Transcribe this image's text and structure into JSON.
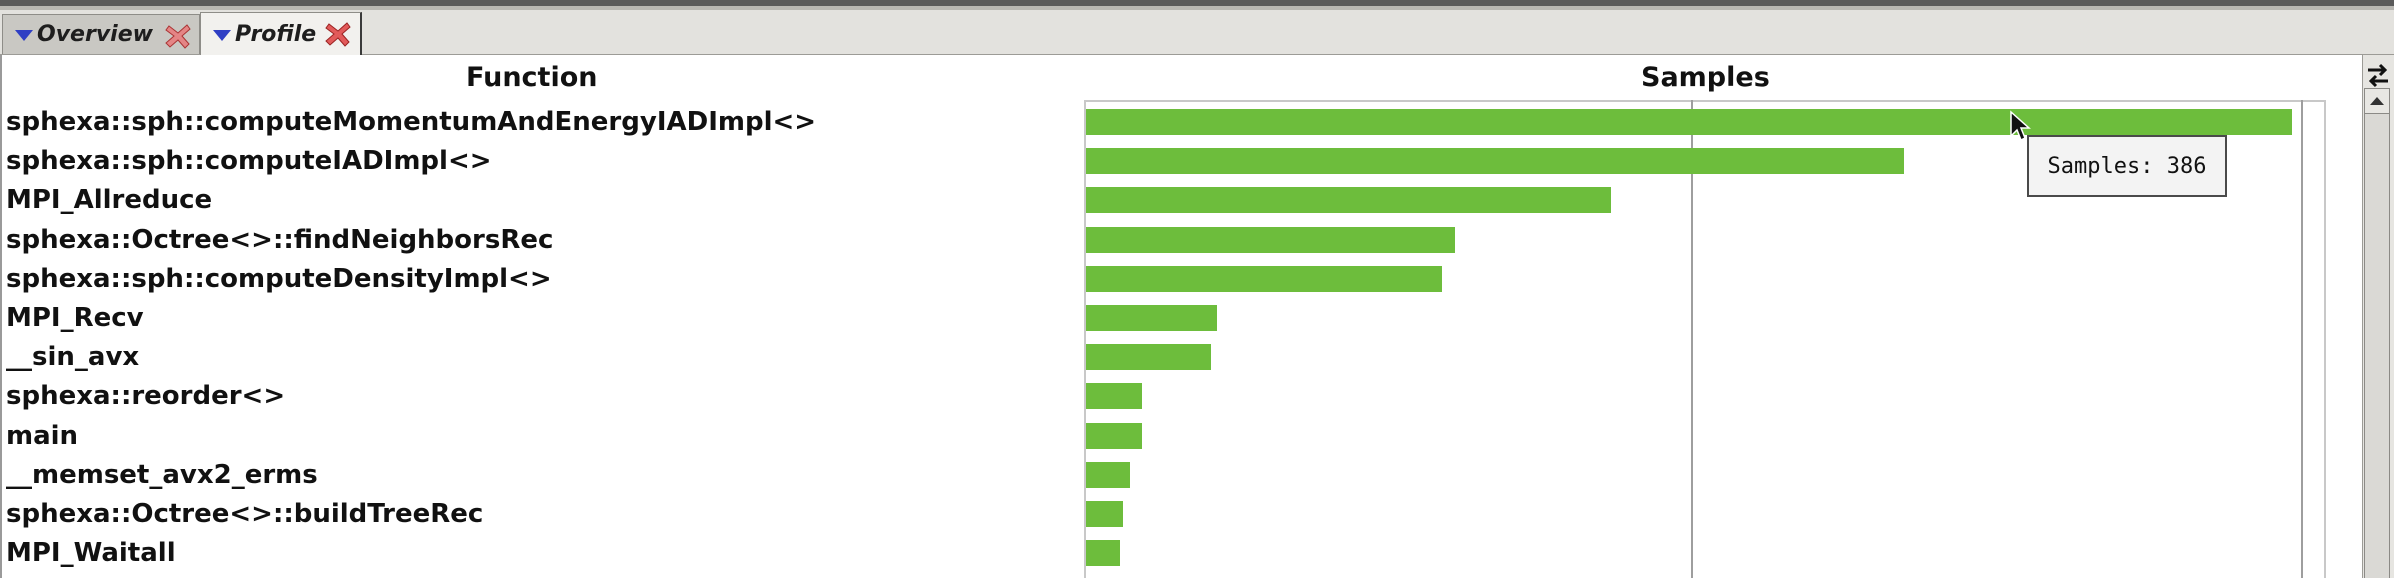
{
  "tabs": [
    {
      "label": "Overview",
      "active": false
    },
    {
      "label": "Profile",
      "active": true
    }
  ],
  "table": {
    "headers": {
      "function": "Function",
      "samples": "Samples"
    },
    "rows": [
      {
        "function": "sphexa::sph::computeMomentumAndEnergyIADImpl<>",
        "samples": 386
      },
      {
        "function": "sphexa::sph::computeIADImpl<>",
        "samples": 262
      },
      {
        "function": "MPI_Allreduce",
        "samples": 168
      },
      {
        "function": "sphexa::Octree<>::findNeighborsRec",
        "samples": 118
      },
      {
        "function": "sphexa::sph::computeDensityImpl<>",
        "samples": 114
      },
      {
        "function": "MPI_Recv",
        "samples": 42
      },
      {
        "function": "__sin_avx",
        "samples": 40
      },
      {
        "function": "sphexa::reorder<>",
        "samples": 18
      },
      {
        "function": "main",
        "samples": 18
      },
      {
        "function": "__memset_avx2_erms",
        "samples": 14
      },
      {
        "function": "sphexa::Octree<>::buildTreeRec",
        "samples": 12
      },
      {
        "function": "MPI_Waitall",
        "samples": 11
      }
    ]
  },
  "chart_data": {
    "type": "bar",
    "orientation": "horizontal",
    "xlim": [
      0,
      390
    ],
    "categories": [
      "sphexa::sph::computeMomentumAndEnergyIADImpl<>",
      "sphexa::sph::computeIADImpl<>",
      "MPI_Allreduce",
      "sphexa::Octree<>::findNeighborsRec",
      "sphexa::sph::computeDensityImpl<>",
      "MPI_Recv",
      "__sin_avx",
      "sphexa::reorder<>",
      "main",
      "__memset_avx2_erms",
      "sphexa::Octree<>::buildTreeRec",
      "MPI_Waitall"
    ],
    "values": [
      386,
      262,
      168,
      118,
      114,
      42,
      40,
      18,
      18,
      14,
      12,
      11
    ],
    "bar_color": "#6dbd3c"
  },
  "tooltip": {
    "text": "Samples: 386"
  },
  "colors": {
    "bar": "#6dbd3c",
    "tab_triangle": "#2f3fc4",
    "close_icon": "#d63a3a"
  }
}
